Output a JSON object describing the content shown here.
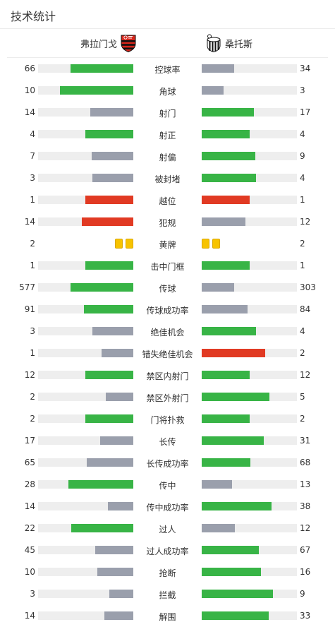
{
  "header": {
    "title": "技术统计"
  },
  "teams": {
    "home": "弗拉门戈",
    "away": "桑托斯"
  },
  "colors": {
    "green": "#38b446",
    "gray": "#9a9fac",
    "red": "#e13a23",
    "track": "#eeeeee",
    "card": "#f7c300"
  },
  "icons": {
    "home_crest": "flamengo-crest-icon",
    "away_crest": "santos-crest-icon",
    "yellow_card": "yellow-card-icon"
  },
  "stats": [
    {
      "label": "控球率",
      "home": "66",
      "away": "34",
      "home_fill": 0.66,
      "away_fill": 0.34,
      "home_color": "green",
      "away_color": "gray"
    },
    {
      "label": "角球",
      "home": "10",
      "away": "3",
      "home_fill": 0.77,
      "away_fill": 0.23,
      "home_color": "green",
      "away_color": "gray"
    },
    {
      "label": "射门",
      "home": "14",
      "away": "17",
      "home_fill": 0.45,
      "away_fill": 0.55,
      "home_color": "gray",
      "away_color": "green"
    },
    {
      "label": "射正",
      "home": "4",
      "away": "4",
      "home_fill": 0.5,
      "away_fill": 0.5,
      "home_color": "green",
      "away_color": "green"
    },
    {
      "label": "射偏",
      "home": "7",
      "away": "9",
      "home_fill": 0.44,
      "away_fill": 0.56,
      "home_color": "gray",
      "away_color": "green"
    },
    {
      "label": "被封堵",
      "home": "3",
      "away": "4",
      "home_fill": 0.43,
      "away_fill": 0.57,
      "home_color": "gray",
      "away_color": "green"
    },
    {
      "label": "越位",
      "home": "1",
      "away": "1",
      "home_fill": 0.5,
      "away_fill": 0.5,
      "home_color": "red",
      "away_color": "red"
    },
    {
      "label": "犯规",
      "home": "14",
      "away": "12",
      "home_fill": 0.54,
      "away_fill": 0.46,
      "home_color": "red",
      "away_color": "gray"
    },
    {
      "label": "黄牌",
      "home": "2",
      "away": "2",
      "cards": true
    },
    {
      "label": "击中门框",
      "home": "1",
      "away": "1",
      "home_fill": 0.5,
      "away_fill": 0.5,
      "home_color": "green",
      "away_color": "green"
    },
    {
      "label": "传球",
      "home": "577",
      "away": "303",
      "home_fill": 0.66,
      "away_fill": 0.34,
      "home_color": "green",
      "away_color": "gray"
    },
    {
      "label": "传球成功率",
      "home": "91",
      "away": "84",
      "home_fill": 0.52,
      "away_fill": 0.48,
      "home_color": "green",
      "away_color": "gray"
    },
    {
      "label": "绝佳机会",
      "home": "3",
      "away": "4",
      "home_fill": 0.43,
      "away_fill": 0.57,
      "home_color": "gray",
      "away_color": "green"
    },
    {
      "label": "错失绝佳机会",
      "home": "1",
      "away": "2",
      "home_fill": 0.33,
      "away_fill": 0.67,
      "home_color": "gray",
      "away_color": "red"
    },
    {
      "label": "禁区内射门",
      "home": "12",
      "away": "12",
      "home_fill": 0.5,
      "away_fill": 0.5,
      "home_color": "green",
      "away_color": "green"
    },
    {
      "label": "禁区外射门",
      "home": "2",
      "away": "5",
      "home_fill": 0.29,
      "away_fill": 0.71,
      "home_color": "gray",
      "away_color": "green"
    },
    {
      "label": "门将扑救",
      "home": "2",
      "away": "2",
      "home_fill": 0.5,
      "away_fill": 0.5,
      "home_color": "green",
      "away_color": "green"
    },
    {
      "label": "长传",
      "home": "17",
      "away": "31",
      "home_fill": 0.35,
      "away_fill": 0.65,
      "home_color": "gray",
      "away_color": "green"
    },
    {
      "label": "长传成功率",
      "home": "65",
      "away": "68",
      "home_fill": 0.49,
      "away_fill": 0.51,
      "home_color": "gray",
      "away_color": "green"
    },
    {
      "label": "传中",
      "home": "28",
      "away": "13",
      "home_fill": 0.68,
      "away_fill": 0.32,
      "home_color": "green",
      "away_color": "gray"
    },
    {
      "label": "传中成功率",
      "home": "14",
      "away": "38",
      "home_fill": 0.27,
      "away_fill": 0.73,
      "home_color": "gray",
      "away_color": "green"
    },
    {
      "label": "过人",
      "home": "22",
      "away": "12",
      "home_fill": 0.65,
      "away_fill": 0.35,
      "home_color": "green",
      "away_color": "gray"
    },
    {
      "label": "过人成功率",
      "home": "45",
      "away": "67",
      "home_fill": 0.4,
      "away_fill": 0.6,
      "home_color": "gray",
      "away_color": "green"
    },
    {
      "label": "抢断",
      "home": "10",
      "away": "16",
      "home_fill": 0.38,
      "away_fill": 0.62,
      "home_color": "gray",
      "away_color": "green"
    },
    {
      "label": "拦截",
      "home": "3",
      "away": "9",
      "home_fill": 0.25,
      "away_fill": 0.75,
      "home_color": "gray",
      "away_color": "green"
    },
    {
      "label": "解围",
      "home": "14",
      "away": "33",
      "home_fill": 0.3,
      "away_fill": 0.7,
      "home_color": "gray",
      "away_color": "green"
    }
  ]
}
